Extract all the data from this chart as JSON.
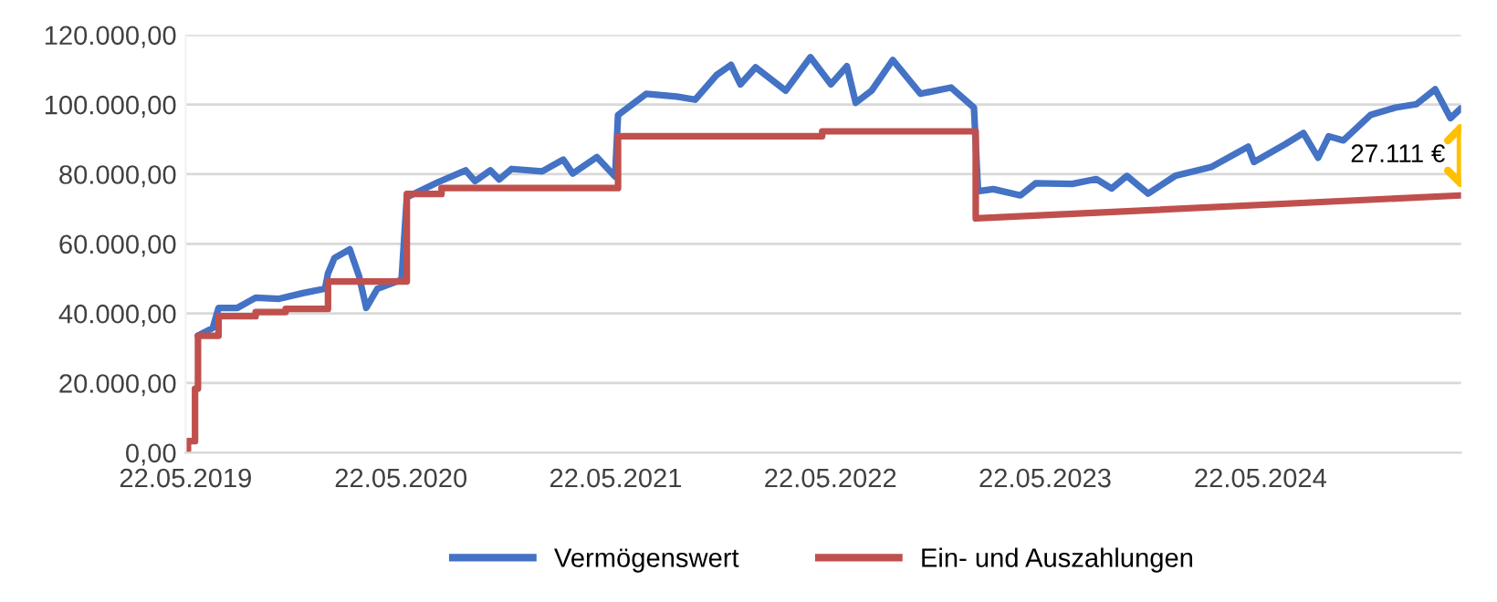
{
  "chart_data": {
    "type": "line",
    "xlim": [
      "2019-05-22",
      "2025-04-28"
    ],
    "xticks": [
      {
        "value": "2019-05-22",
        "label": "22.05.2019"
      },
      {
        "value": "2020-05-22",
        "label": "22.05.2020"
      },
      {
        "value": "2021-05-22",
        "label": "22.05.2021"
      },
      {
        "value": "2022-05-22",
        "label": "22.05.2022"
      },
      {
        "value": "2023-05-22",
        "label": "22.05.2023"
      },
      {
        "value": "2024-05-22",
        "label": "22.05.2024"
      }
    ],
    "ylim": [
      0,
      120000
    ],
    "yticks": [
      {
        "value": 0,
        "label": "0,00"
      },
      {
        "value": 20000,
        "label": "20.000,00"
      },
      {
        "value": 40000,
        "label": "40.000,00"
      },
      {
        "value": 60000,
        "label": "60.000,00"
      },
      {
        "value": 80000,
        "label": "80.000,00"
      },
      {
        "value": 100000,
        "label": "100.000,00"
      },
      {
        "value": 120000,
        "label": "120.000,00"
      }
    ],
    "grid": "y",
    "legend": "bottom",
    "marker": "none",
    "line_style": "solid",
    "series": [
      {
        "name": "Vermögenswert",
        "color": "#4472c4",
        "x": [
          "2019-06-12",
          "2019-07-07",
          "2019-07-17",
          "2019-08-18",
          "2019-09-18",
          "2019-10-28",
          "2019-12-09",
          "2020-01-14",
          "2020-01-19",
          "2020-01-30",
          "2020-02-25",
          "2020-03-12",
          "2020-03-24",
          "2020-04-12",
          "2020-05-23",
          "2020-06-01",
          "2020-07-24",
          "2020-09-09",
          "2020-09-25",
          "2020-10-21",
          "2020-11-05",
          "2020-11-26",
          "2021-01-17",
          "2021-02-22",
          "2021-03-10",
          "2021-04-20",
          "2021-05-21",
          "2021-05-26",
          "2021-07-13",
          "2021-09-03",
          "2021-10-04",
          "2021-11-09",
          "2021-12-04",
          "2021-12-20",
          "2022-01-15",
          "2022-03-07",
          "2022-04-18",
          "2022-05-23",
          "2022-06-19",
          "2022-07-04",
          "2022-07-31",
          "2022-09-05",
          "2022-10-22",
          "2022-12-13",
          "2023-01-21",
          "2023-01-28",
          "2023-02-23",
          "2023-04-10",
          "2023-05-06",
          "2023-07-07",
          "2023-08-17",
          "2023-09-12",
          "2023-10-08",
          "2023-11-13",
          "2023-12-29",
          "2024-02-29",
          "2024-05-01",
          "2024-05-11",
          "2024-07-03",
          "2024-08-03",
          "2024-08-28",
          "2024-09-15",
          "2024-10-10",
          "2024-11-25",
          "2025-01-06",
          "2025-02-11",
          "2025-03-15",
          "2025-04-10",
          "2025-04-27"
        ],
        "values": [
          33600,
          35800,
          41600,
          41600,
          44500,
          44200,
          45900,
          47100,
          51500,
          55900,
          58400,
          50600,
          41600,
          47100,
          49700,
          73400,
          77700,
          81100,
          78000,
          81100,
          78500,
          81500,
          80800,
          84200,
          80200,
          84900,
          79300,
          97000,
          103100,
          102300,
          101400,
          108400,
          111400,
          105800,
          110700,
          104000,
          113600,
          105800,
          111000,
          100500,
          104000,
          112800,
          103100,
          104900,
          99100,
          75100,
          75700,
          73900,
          77400,
          77200,
          78600,
          75900,
          79500,
          74400,
          79500,
          82100,
          87900,
          83500,
          88600,
          91800,
          84700,
          90900,
          89700,
          97000,
          99100,
          100100,
          104400,
          96100,
          98800
        ]
      },
      {
        "name": "Ein- und Auszahlungen",
        "color": "#c0504d",
        "x": [
          "2019-05-24",
          "2019-05-26",
          "2019-05-26",
          "2019-06-07",
          "2019-06-07",
          "2019-06-12",
          "2019-06-12",
          "2019-07-17",
          "2019-07-17",
          "2019-09-18",
          "2019-09-18",
          "2019-11-08",
          "2019-11-08",
          "2020-01-19",
          "2020-01-19",
          "2020-06-01",
          "2020-06-01",
          "2020-07-30",
          "2020-07-30",
          "2021-05-26",
          "2021-05-26",
          "2022-05-08",
          "2022-05-08",
          "2023-01-24",
          "2023-01-24",
          "2025-04-27"
        ],
        "values": [
          700,
          700,
          3300,
          3300,
          18400,
          18400,
          33600,
          33600,
          39200,
          39200,
          40400,
          40400,
          41300,
          41300,
          49200,
          49200,
          74300,
          74300,
          76000,
          76000,
          90900,
          90900,
          92300,
          92300,
          67300,
          73900
        ]
      }
    ],
    "annotations": [
      "27.111 €"
    ]
  }
}
